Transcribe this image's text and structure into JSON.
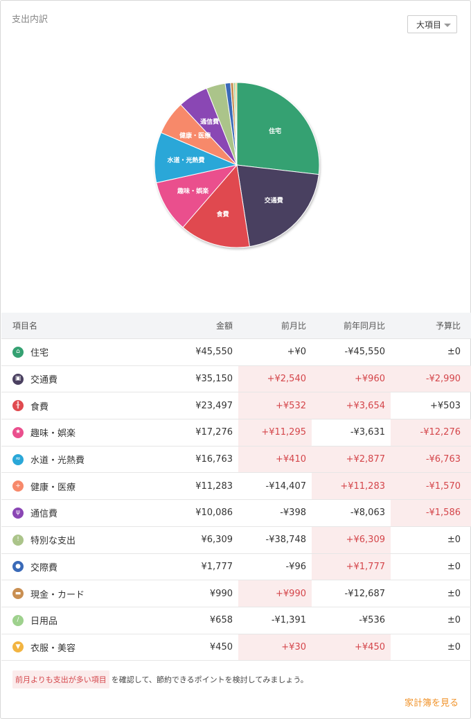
{
  "header": {
    "title": "支出内訳",
    "dropdown_label": "大項目"
  },
  "chart_data": {
    "type": "pie",
    "slices": [
      {
        "label": "住宅",
        "value": 45550,
        "color": "#35a172",
        "show_label": true
      },
      {
        "label": "交通費",
        "value": 35150,
        "color": "#4a4060",
        "show_label": true
      },
      {
        "label": "食費",
        "value": 23497,
        "color": "#e04a4f",
        "show_label": true
      },
      {
        "label": "趣味・娯楽",
        "value": 17276,
        "color": "#ea4f8d",
        "show_label": true
      },
      {
        "label": "水道・光熱費",
        "value": 16763,
        "color": "#2aa7d8",
        "show_label": true
      },
      {
        "label": "健康・医療",
        "value": 11283,
        "color": "#f7896b",
        "show_label": true
      },
      {
        "label": "通信費",
        "value": 10086,
        "color": "#8a46b4",
        "show_label": true
      },
      {
        "label": "特別な支出",
        "value": 6309,
        "color": "#abc48a",
        "show_label": false
      },
      {
        "label": "交際費",
        "value": 1777,
        "color": "#3a6ab8",
        "show_label": false
      },
      {
        "label": "現金・カード",
        "value": 990,
        "color": "#c98f52",
        "show_label": false
      },
      {
        "label": "日用品",
        "value": 658,
        "color": "#9ed18d",
        "show_label": false
      },
      {
        "label": "衣服・美容",
        "value": 450,
        "color": "#f2b441",
        "show_label": false
      }
    ]
  },
  "table": {
    "headers": {
      "name": "項目名",
      "amount": "金額",
      "prev_month": "前月比",
      "prev_year": "前年同月比",
      "budget": "予算比"
    },
    "rows": [
      {
        "name": "住宅",
        "icon": "house-icon",
        "icon_color": "#35a172",
        "amount": "¥45,550",
        "prev_month": "+¥0",
        "prev_year": "-¥45,550",
        "budget": "±0",
        "hl": [
          false,
          false,
          false
        ]
      },
      {
        "name": "交通費",
        "icon": "train-icon",
        "icon_color": "#4a4060",
        "amount": "¥35,150",
        "prev_month": "+¥2,540",
        "prev_year": "+¥960",
        "budget": "-¥2,990",
        "hl": [
          true,
          true,
          true
        ]
      },
      {
        "name": "食費",
        "icon": "fork-knife-icon",
        "icon_color": "#e04a4f",
        "amount": "¥23,497",
        "prev_month": "+¥532",
        "prev_year": "+¥3,654",
        "budget": "+¥503",
        "hl": [
          true,
          true,
          false
        ]
      },
      {
        "name": "趣味・娯楽",
        "icon": "star-icon",
        "icon_color": "#ea4f8d",
        "amount": "¥17,276",
        "prev_month": "+¥11,295",
        "prev_year": "-¥3,631",
        "budget": "-¥12,276",
        "hl": [
          true,
          false,
          true
        ]
      },
      {
        "name": "水道・光熱費",
        "icon": "faucet-icon",
        "icon_color": "#2aa7d8",
        "amount": "¥16,763",
        "prev_month": "+¥410",
        "prev_year": "+¥2,877",
        "budget": "-¥6,763",
        "hl": [
          true,
          true,
          true
        ]
      },
      {
        "name": "健康・医療",
        "icon": "medical-cross-icon",
        "icon_color": "#f7896b",
        "amount": "¥11,283",
        "prev_month": "-¥14,407",
        "prev_year": "+¥11,283",
        "budget": "-¥1,570",
        "hl": [
          false,
          true,
          true
        ]
      },
      {
        "name": "通信費",
        "icon": "antenna-icon",
        "icon_color": "#8a46b4",
        "amount": "¥10,086",
        "prev_month": "-¥398",
        "prev_year": "-¥8,063",
        "budget": "-¥1,586",
        "hl": [
          false,
          false,
          true
        ]
      },
      {
        "name": "特別な支出",
        "icon": "exclamation-icon",
        "icon_color": "#abc48a",
        "amount": "¥6,309",
        "prev_month": "-¥38,748",
        "prev_year": "+¥6,309",
        "budget": "±0",
        "hl": [
          false,
          true,
          false
        ]
      },
      {
        "name": "交際費",
        "icon": "people-icon",
        "icon_color": "#3a6ab8",
        "amount": "¥1,777",
        "prev_month": "-¥96",
        "prev_year": "+¥1,777",
        "budget": "±0",
        "hl": [
          false,
          true,
          false
        ]
      },
      {
        "name": "現金・カード",
        "icon": "wallet-icon",
        "icon_color": "#c98f52",
        "amount": "¥990",
        "prev_month": "+¥990",
        "prev_year": "-¥12,687",
        "budget": "±0",
        "hl": [
          true,
          false,
          false
        ]
      },
      {
        "name": "日用品",
        "icon": "leaf-icon",
        "icon_color": "#9ed18d",
        "amount": "¥658",
        "prev_month": "-¥1,391",
        "prev_year": "-¥536",
        "budget": "±0",
        "hl": [
          false,
          false,
          false
        ]
      },
      {
        "name": "衣服・美容",
        "icon": "shirt-icon",
        "icon_color": "#f2b441",
        "amount": "¥450",
        "prev_month": "+¥30",
        "prev_year": "+¥450",
        "budget": "±0",
        "hl": [
          true,
          true,
          false
        ]
      }
    ]
  },
  "footer": {
    "note_tag": "前月よりも支出が多い項目",
    "note_text": "を確認して、節約できるポイントを検討してみましょう。",
    "link": "家計簿を見る"
  }
}
